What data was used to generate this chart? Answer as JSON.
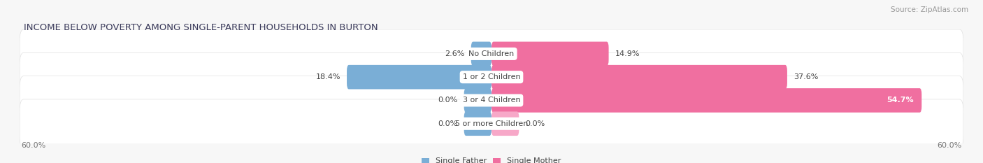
{
  "title": "INCOME BELOW POVERTY AMONG SINGLE-PARENT HOUSEHOLDS IN BURTON",
  "source": "Source: ZipAtlas.com",
  "categories": [
    "No Children",
    "1 or 2 Children",
    "3 or 4 Children",
    "5 or more Children"
  ],
  "father_values": [
    2.6,
    18.4,
    0.0,
    0.0
  ],
  "mother_values": [
    14.9,
    37.6,
    54.7,
    0.0
  ],
  "father_color": "#7aaed6",
  "mother_color": "#f06fa0",
  "mother_color_light": "#f7a8c8",
  "father_label": "Single Father",
  "mother_label": "Single Mother",
  "axis_limit": 60.0,
  "bg_color": "#f7f7f7",
  "row_bg_color": "#ffffff",
  "row_sep_color": "#e0e0e0",
  "title_color": "#3a3a5a",
  "label_color": "#444444",
  "axis_label_color": "#777777",
  "source_color": "#999999",
  "title_fontsize": 9.5,
  "cat_fontsize": 8,
  "val_fontsize": 8,
  "axis_label_fontsize": 8,
  "source_fontsize": 7.5,
  "legend_fontsize": 8
}
